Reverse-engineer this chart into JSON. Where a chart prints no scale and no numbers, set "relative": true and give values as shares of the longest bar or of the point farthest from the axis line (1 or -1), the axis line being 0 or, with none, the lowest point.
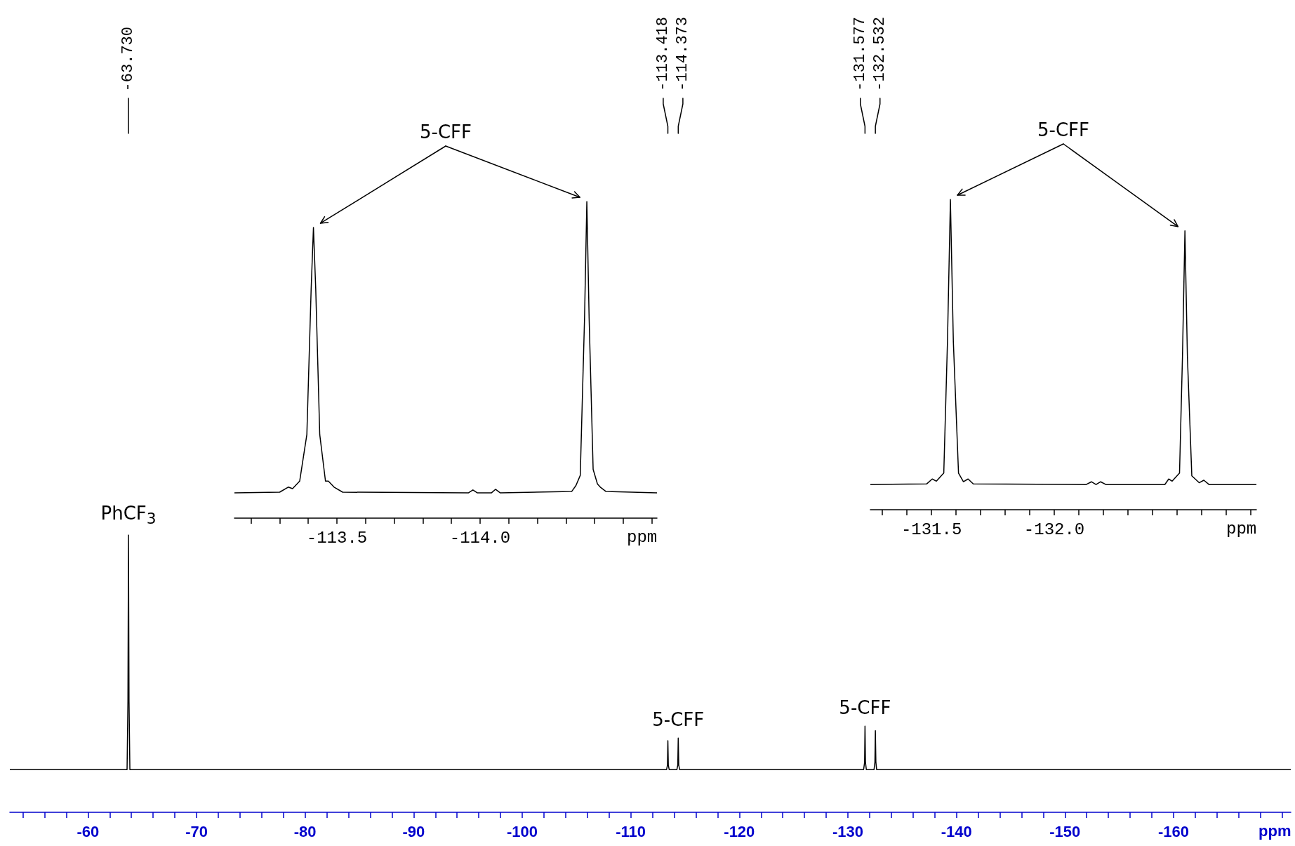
{
  "chart_data": [
    {
      "type": "line",
      "relative": true,
      "xlabel": "ppm",
      "xlim": [
        -52.8,
        -170.8
      ],
      "xticks": [
        {
          "value": -54,
          "label": null
        },
        {
          "value": -56,
          "label": null
        },
        {
          "value": -58,
          "label": null
        },
        -60,
        {
          "value": -62,
          "label": null
        },
        {
          "value": -64,
          "label": null
        },
        {
          "value": -66,
          "label": null
        },
        {
          "value": -68,
          "label": null
        },
        -70,
        {
          "value": -72,
          "label": null
        },
        {
          "value": -74,
          "label": null
        },
        {
          "value": -76,
          "label": null
        },
        {
          "value": -78,
          "label": null
        },
        -80,
        {
          "value": -82,
          "label": null
        },
        {
          "value": -84,
          "label": null
        },
        {
          "value": -86,
          "label": null
        },
        {
          "value": -88,
          "label": null
        },
        -90,
        {
          "value": -92,
          "label": null
        },
        {
          "value": -94,
          "label": null
        },
        {
          "value": -96,
          "label": null
        },
        {
          "value": -98,
          "label": null
        },
        -100,
        {
          "value": -102,
          "label": null
        },
        {
          "value": -104,
          "label": null
        },
        {
          "value": -106,
          "label": null
        },
        {
          "value": -108,
          "label": null
        },
        -110,
        {
          "value": -112,
          "label": null
        },
        {
          "value": -114,
          "label": null
        },
        {
          "value": -116,
          "label": null
        },
        {
          "value": -118,
          "label": null
        },
        -120,
        {
          "value": -122,
          "label": null
        },
        {
          "value": -124,
          "label": null
        },
        {
          "value": -126,
          "label": null
        },
        {
          "value": -128,
          "label": null
        },
        -130,
        {
          "value": -132,
          "label": null
        },
        {
          "value": -134,
          "label": null
        },
        {
          "value": -136,
          "label": null
        },
        {
          "value": -138,
          "label": null
        },
        -140,
        {
          "value": -142,
          "label": null
        },
        {
          "value": -144,
          "label": null
        },
        {
          "value": -146,
          "label": null
        },
        {
          "value": -148,
          "label": null
        },
        -150,
        {
          "value": -152,
          "label": null
        },
        {
          "value": -154,
          "label": null
        },
        {
          "value": -156,
          "label": null
        },
        {
          "value": -158,
          "label": null
        },
        -160,
        {
          "value": -162,
          "label": null
        },
        {
          "value": -164,
          "label": null
        },
        {
          "value": -166,
          "label": null
        },
        {
          "value": -168,
          "label": null
        },
        {
          "value": -170,
          "label": null
        }
      ],
      "series": [
        {
          "color": "#000000",
          "x": [
            -52.8,
            -63.6,
            -63.68,
            -63.73,
            -63.78,
            -63.86,
            -113.3,
            -113.38,
            -113.418,
            -113.46,
            -113.54,
            -114.25,
            -114.33,
            -114.373,
            -114.42,
            -114.5,
            -131.45,
            -131.54,
            -131.577,
            -131.62,
            -131.7,
            -132.41,
            -132.49,
            -132.532,
            -132.58,
            -132.65,
            -170.8
          ],
          "values": [
            0.154,
            0.154,
            0.4,
            1,
            0.4,
            0.154,
            0.154,
            0.17,
            0.258,
            0.17,
            0.154,
            0.154,
            0.17,
            0.268,
            0.17,
            0.154,
            0.154,
            0.18,
            0.311,
            0.18,
            0.154,
            0.154,
            0.18,
            0.294,
            0.18,
            0.154,
            0.154
          ]
        }
      ],
      "annotations": [
        {
          "text": "PhCF$_{3}$",
          "x": -63.73,
          "y": 1
        },
        {
          "text": "5-CFF",
          "x": -114.373,
          "y": 0.268
        },
        {
          "text": "5-CFF",
          "x": -131.577,
          "y": 0.311
        },
        {
          "text": "-63.730",
          "x": -63.73
        },
        {
          "text": "-113.418",
          "x": -113.418
        },
        {
          "text": "-114.373",
          "x": -114.373
        },
        {
          "text": "-131.577",
          "x": -131.577
        },
        {
          "text": "-132.532",
          "x": -132.532
        }
      ]
    },
    {
      "type": "line",
      "relative": true,
      "xlabel": "ppm",
      "xlim": [
        -113.142,
        -114.618
      ],
      "xticks": [
        {
          "value": -113.2,
          "label": null
        },
        {
          "value": -113.3,
          "label": null
        },
        {
          "value": -113.4,
          "label": null
        },
        -113.5,
        {
          "value": -113.6,
          "label": null
        },
        {
          "value": -113.7,
          "label": null
        },
        {
          "value": -113.8,
          "label": null
        },
        {
          "value": -113.9,
          "label": null
        },
        {
          "value": -114,
          "label": "-114.0"
        },
        {
          "value": -114.1,
          "label": null
        },
        {
          "value": -114.2,
          "label": null
        },
        {
          "value": -114.3,
          "label": null
        },
        {
          "value": -114.4,
          "label": null
        },
        {
          "value": -114.5,
          "label": null
        },
        {
          "value": -114.6,
          "label": null
        }
      ],
      "series": [
        {
          "color": "#000000",
          "x": [
            -113.142,
            -113.3,
            -113.33,
            -113.345,
            -113.37,
            -113.395,
            -113.41,
            -113.418,
            -113.426,
            -113.44,
            -113.46,
            -113.47,
            -113.49,
            -113.52,
            -113.96,
            -113.975,
            -113.99,
            -114.04,
            -114.054,
            -114.07,
            -114.32,
            -114.335,
            -114.35,
            -114.365,
            -114.373,
            -114.381,
            -114.395,
            -114.41,
            -114.42,
            -114.44,
            -114.618
          ],
          "values": [
            0.08,
            0.082,
            0.098,
            0.093,
            0.117,
            0.264,
            0.724,
            0.918,
            0.724,
            0.264,
            0.117,
            0.117,
            0.098,
            0.082,
            0.08,
            0.089,
            0.08,
            0.08,
            0.091,
            0.08,
            0.084,
            0.103,
            0.135,
            0.632,
            1,
            0.632,
            0.154,
            0.108,
            0.098,
            0.084,
            0.08
          ]
        }
      ],
      "annotations": [
        "5-CFF"
      ]
    },
    {
      "type": "line",
      "relative": true,
      "xlabel": "ppm",
      "xlim": [
        -131.251,
        -132.823
      ],
      "xticks": [
        {
          "value": -131.3,
          "label": null
        },
        {
          "value": -131.4,
          "label": null
        },
        -131.5,
        {
          "value": -131.6,
          "label": null
        },
        {
          "value": -131.7,
          "label": null
        },
        {
          "value": -131.8,
          "label": null
        },
        {
          "value": -131.9,
          "label": null
        },
        {
          "value": -132,
          "label": "-132.0"
        },
        {
          "value": -132.1,
          "label": null
        },
        {
          "value": -132.2,
          "label": null
        },
        {
          "value": -132.3,
          "label": null
        },
        {
          "value": -132.4,
          "label": null
        },
        {
          "value": -132.5,
          "label": null
        },
        {
          "value": -132.6,
          "label": null
        },
        {
          "value": -132.7,
          "label": null
        },
        {
          "value": -132.8,
          "label": null
        }
      ],
      "series": [
        {
          "color": "#000000",
          "x": [
            -131.251,
            -131.48,
            -131.503,
            -131.52,
            -131.55,
            -131.565,
            -131.577,
            -131.589,
            -131.61,
            -131.63,
            -131.649,
            -131.67,
            -132.13,
            -132.151,
            -132.17,
            -132.189,
            -132.21,
            -132.45,
            -132.466,
            -132.48,
            -132.51,
            -132.522,
            -132.532,
            -132.542,
            -132.56,
            -132.59,
            -132.609,
            -132.63,
            -132.823
          ],
          "values": [
            0.081,
            0.083,
            0.099,
            0.092,
            0.118,
            0.541,
            1,
            0.541,
            0.118,
            0.09,
            0.099,
            0.083,
            0.081,
            0.09,
            0.081,
            0.09,
            0.081,
            0.081,
            0.099,
            0.092,
            0.118,
            0.495,
            0.899,
            0.495,
            0.109,
            0.087,
            0.095,
            0.081,
            0.081
          ]
        }
      ],
      "annotations": [
        "5-CFF"
      ]
    }
  ]
}
